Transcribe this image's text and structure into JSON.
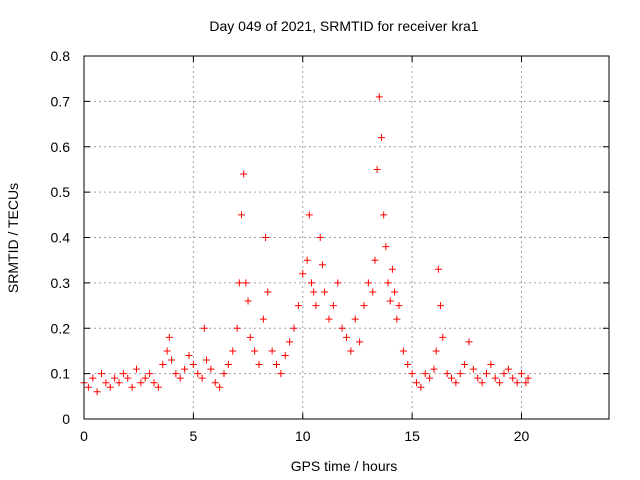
{
  "chart_data": {
    "type": "scatter",
    "title": "Day 049 of 2021, SRMTID for receiver kra1",
    "xlabel": "GPS time / hours",
    "ylabel": "SRMTID / TECUs",
    "xlim": [
      0,
      24
    ],
    "ylim": [
      0,
      0.8
    ],
    "xticks": [
      0,
      5,
      10,
      15,
      20
    ],
    "xtick_labels": [
      "0",
      "5",
      "10",
      "15",
      "20"
    ],
    "yticks": [
      0,
      0.1,
      0.2,
      0.3,
      0.4,
      0.5,
      0.6,
      0.7,
      0.8
    ],
    "ytick_labels": [
      "0",
      "0.1",
      "0.2",
      "0.3",
      "0.4",
      "0.5",
      "0.6",
      "0.7",
      "0.8"
    ],
    "grid": true,
    "marker": "plus",
    "color": "#ff0000",
    "series": [
      {
        "name": "SRMTID",
        "x": [
          0.0,
          0.2,
          0.4,
          0.6,
          0.8,
          1.0,
          1.2,
          1.4,
          1.6,
          1.8,
          2.0,
          2.2,
          2.4,
          2.6,
          2.8,
          3.0,
          3.2,
          3.4,
          3.6,
          3.8,
          3.9,
          4.0,
          4.2,
          4.4,
          4.6,
          4.8,
          5.0,
          5.2,
          5.4,
          5.5,
          5.6,
          5.8,
          6.0,
          6.2,
          6.4,
          6.6,
          6.8,
          7.0,
          7.1,
          7.2,
          7.3,
          7.4,
          7.5,
          7.6,
          7.8,
          8.0,
          8.2,
          8.3,
          8.4,
          8.6,
          8.8,
          9.0,
          9.2,
          9.4,
          9.6,
          9.8,
          10.0,
          10.2,
          10.3,
          10.4,
          10.5,
          10.6,
          10.8,
          10.9,
          11.0,
          11.2,
          11.4,
          11.6,
          11.8,
          12.0,
          12.2,
          12.4,
          12.6,
          12.8,
          13.0,
          13.2,
          13.3,
          13.4,
          13.5,
          13.6,
          13.7,
          13.8,
          13.9,
          14.0,
          14.1,
          14.2,
          14.3,
          14.4,
          14.6,
          14.8,
          15.0,
          15.2,
          15.4,
          15.6,
          15.8,
          16.0,
          16.1,
          16.2,
          16.3,
          16.4,
          16.6,
          16.8,
          17.0,
          17.2,
          17.4,
          17.6,
          17.8,
          18.0,
          18.2,
          18.4,
          18.6,
          18.8,
          19.0,
          19.2,
          19.4,
          19.6,
          19.8,
          20.0,
          20.2,
          20.3
        ],
        "y": [
          0.08,
          0.07,
          0.09,
          0.06,
          0.1,
          0.08,
          0.07,
          0.09,
          0.08,
          0.1,
          0.09,
          0.07,
          0.11,
          0.08,
          0.09,
          0.1,
          0.08,
          0.07,
          0.12,
          0.15,
          0.18,
          0.13,
          0.1,
          0.09,
          0.11,
          0.14,
          0.12,
          0.1,
          0.09,
          0.2,
          0.13,
          0.11,
          0.08,
          0.07,
          0.1,
          0.12,
          0.15,
          0.2,
          0.3,
          0.45,
          0.54,
          0.3,
          0.26,
          0.18,
          0.15,
          0.12,
          0.22,
          0.4,
          0.28,
          0.15,
          0.12,
          0.1,
          0.14,
          0.17,
          0.2,
          0.25,
          0.32,
          0.35,
          0.45,
          0.3,
          0.28,
          0.25,
          0.4,
          0.34,
          0.28,
          0.22,
          0.25,
          0.3,
          0.2,
          0.18,
          0.15,
          0.22,
          0.17,
          0.25,
          0.3,
          0.28,
          0.35,
          0.55,
          0.71,
          0.62,
          0.45,
          0.38,
          0.3,
          0.26,
          0.33,
          0.28,
          0.22,
          0.25,
          0.15,
          0.12,
          0.1,
          0.08,
          0.07,
          0.1,
          0.09,
          0.11,
          0.15,
          0.33,
          0.25,
          0.18,
          0.1,
          0.09,
          0.08,
          0.1,
          0.12,
          0.17,
          0.11,
          0.09,
          0.08,
          0.1,
          0.12,
          0.09,
          0.08,
          0.1,
          0.11,
          0.09,
          0.08,
          0.1,
          0.08,
          0.09
        ]
      }
    ]
  }
}
